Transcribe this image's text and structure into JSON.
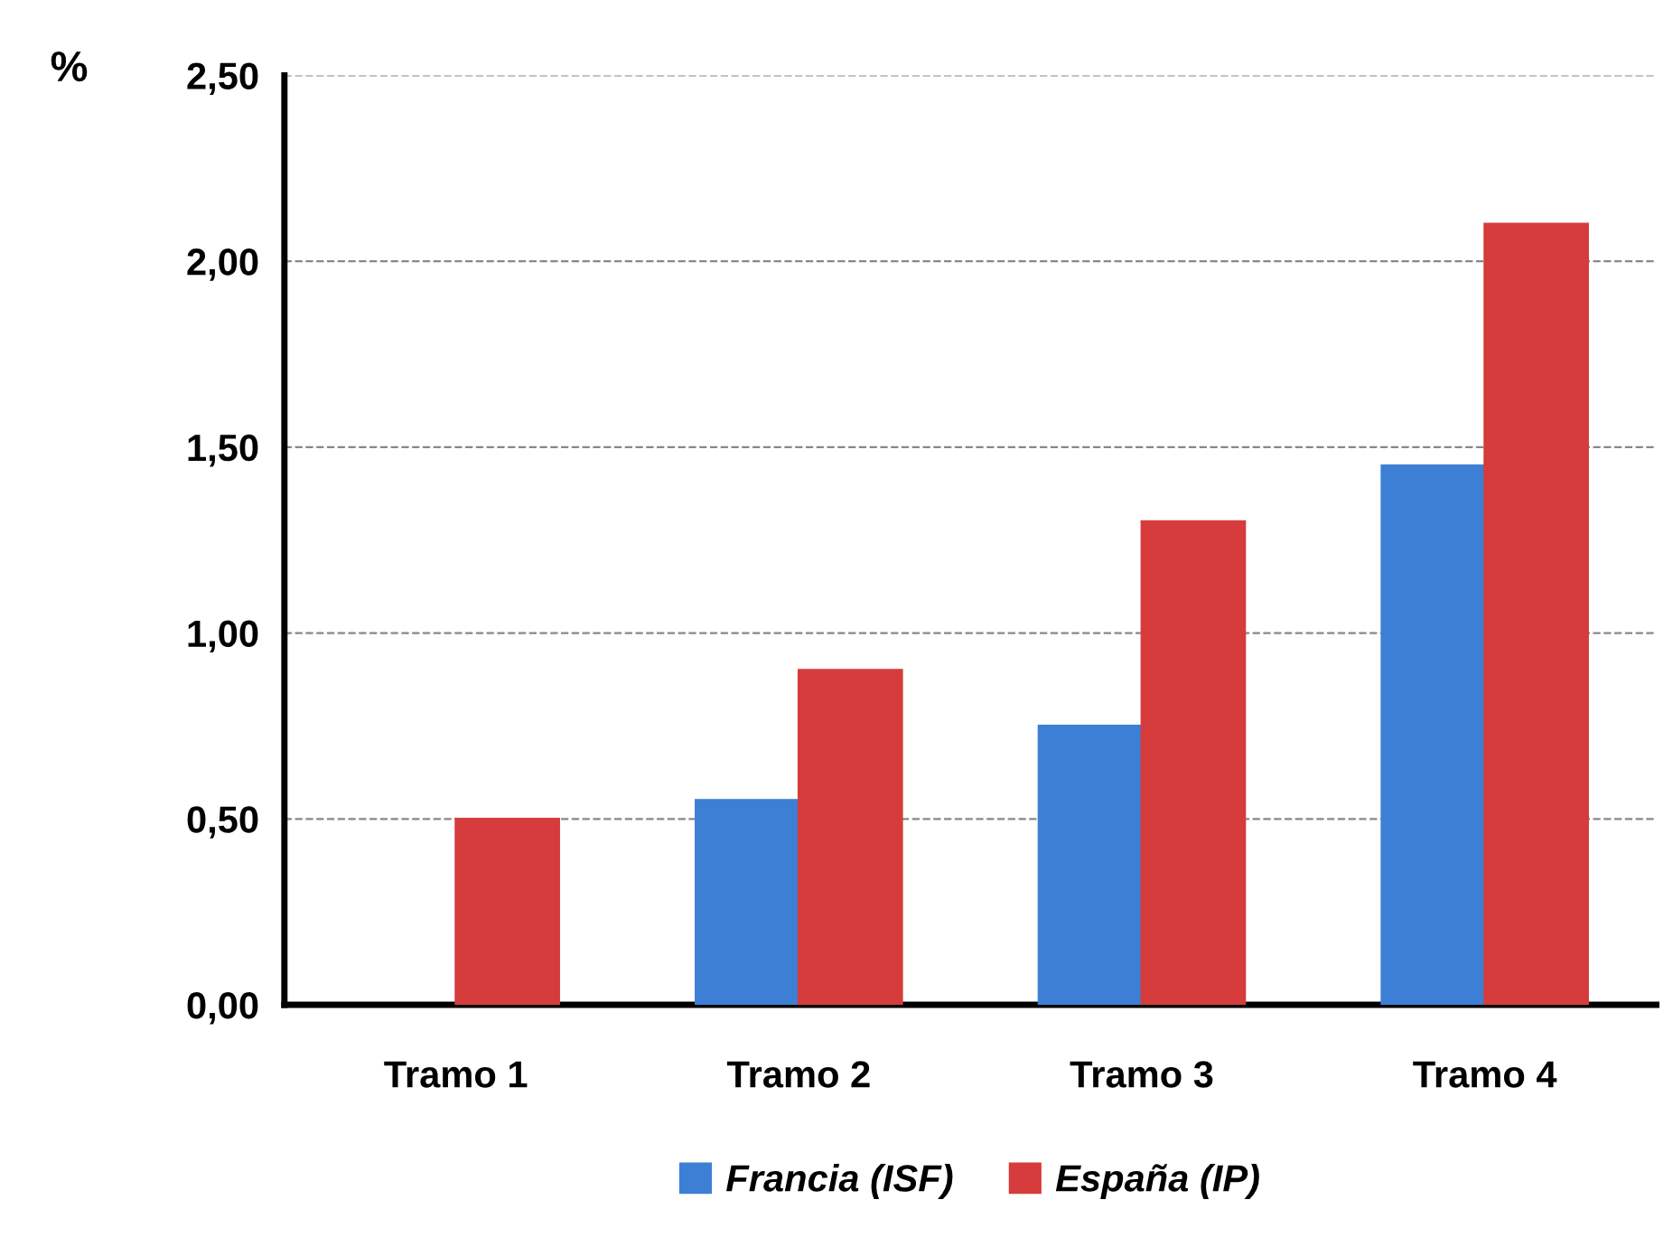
{
  "chart_data": {
    "type": "bar",
    "ylabel": "%",
    "categories": [
      "Tramo 1",
      "Tramo 2",
      "Tramo 3",
      "Tramo 4"
    ],
    "series": [
      {
        "name": "Francia (ISF)",
        "color": "#3d7fd4",
        "values": [
          null,
          0.55,
          0.75,
          1.45
        ]
      },
      {
        "name": "España (IP)",
        "color": "#d63c3c",
        "values": [
          0.5,
          0.9,
          1.3,
          2.1
        ]
      }
    ],
    "ylim": [
      0,
      2.5
    ],
    "yticks": [
      {
        "value": 0,
        "label": "0,00"
      },
      {
        "value": 0.5,
        "label": "0,50"
      },
      {
        "value": 1.0,
        "label": "1,00"
      },
      {
        "value": 1.5,
        "label": "1,50"
      },
      {
        "value": 2.0,
        "label": "2,00"
      },
      {
        "value": 2.5,
        "label": "2,50"
      }
    ],
    "grid": "y",
    "legend": "bottom"
  }
}
